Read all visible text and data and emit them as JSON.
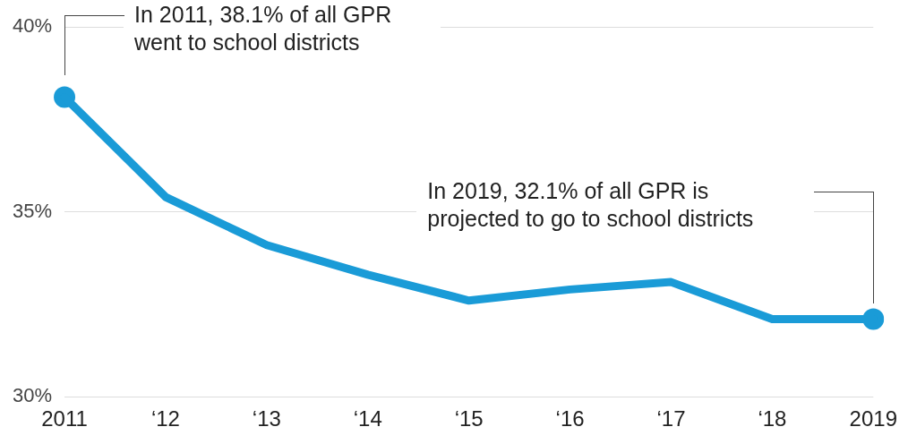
{
  "chart_data": {
    "type": "line",
    "categories": [
      "2011",
      "‘12",
      "‘13",
      "‘14",
      "‘15",
      "‘16",
      "‘17",
      "‘18",
      "2019"
    ],
    "series": [
      {
        "color": "#1a9bd7",
        "values": [
          38.1,
          35.4,
          34.1,
          33.3,
          32.6,
          32.9,
          33.1,
          32.1,
          32.1
        ]
      },
      {
        "type": "scatter",
        "color": "#1a9bd7",
        "marker": "circle",
        "values": [
          38.1,
          null,
          null,
          null,
          null,
          null,
          null,
          null,
          32.1
        ]
      }
    ],
    "ylim": [
      30,
      40
    ],
    "yticks": [
      {
        "value": 30,
        "label": "30%"
      },
      {
        "value": 35,
        "label": "35%"
      },
      {
        "value": 40,
        "label": "40%"
      }
    ],
    "grid": "y",
    "legend": false,
    "line_style": "solid",
    "annotations": [
      "In 2011, 38.1% of all GPR went to school districts",
      "In 2019, 32.1% of all GPR is projected to go to school districts"
    ]
  }
}
